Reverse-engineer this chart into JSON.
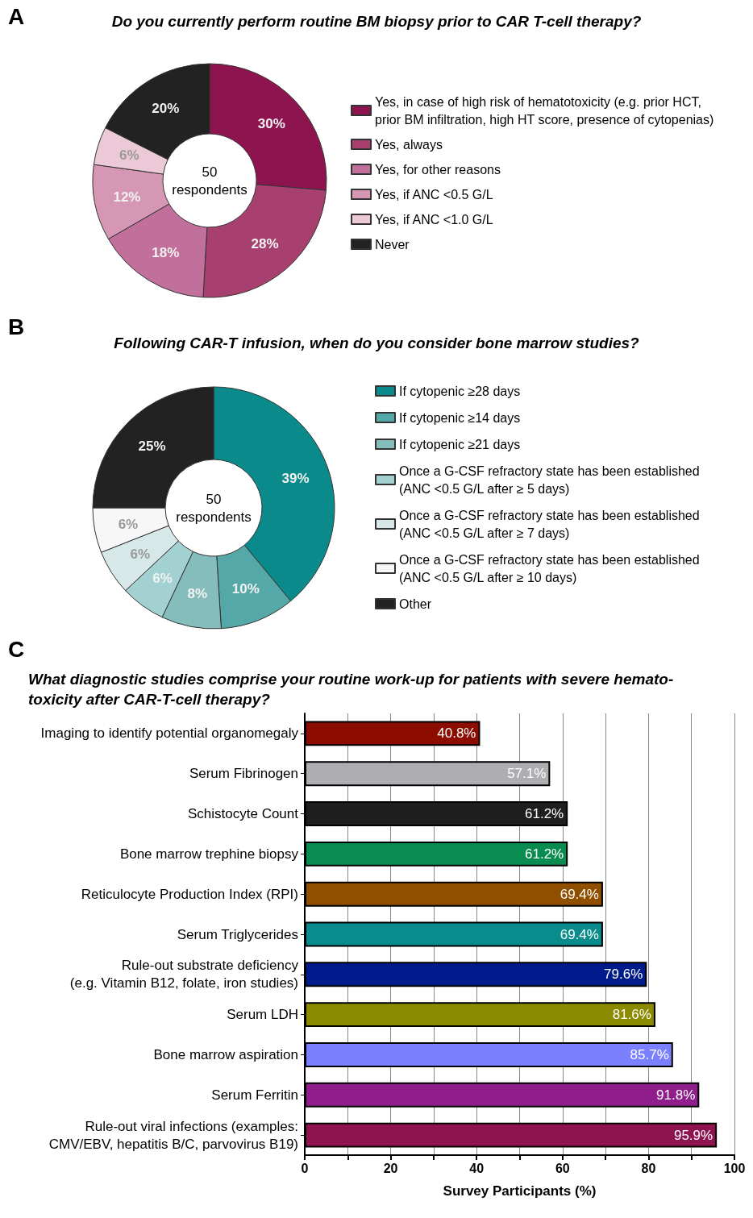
{
  "chart_data": [
    {
      "type": "donut",
      "title": "Do you currently perform routine BM biopsy prior to CAR T-cell therapy?",
      "annotations": [
        "A",
        "50\nrespondents"
      ],
      "categories": [
        "Yes, in case of high risk of hematotoxicity (e.g. prior HCT,\nprior BM infiltration, high HT score, presence of cytopenias)",
        "Yes, always",
        "Yes, for other reasons",
        "Yes, if ANC <0.5 G/L",
        "Yes, if ANC <1.0 G/L",
        "Never"
      ],
      "values": [
        30,
        28,
        18,
        12,
        6,
        20
      ],
      "value_labels": [
        "30%",
        "28%",
        "18%",
        "12%",
        "6%",
        "20%"
      ],
      "colors": [
        "#8e1450",
        "#a8406f",
        "#c0709a",
        "#d597b3",
        "#ecc9d6",
        "#222222"
      ],
      "legend": "right"
    },
    {
      "type": "donut",
      "title": "Following CAR-T infusion, when do you consider bone marrow studies?",
      "annotations": [
        "B",
        "50\nrespondents"
      ],
      "categories": [
        "If cytopenic ≥28 days",
        "If cytopenic ≥14 days",
        "If cytopenic ≥21 days",
        "Once a G-CSF refractory state has been established\n(ANC <0.5 G/L after ≥ 5 days)",
        "Once a G-CSF refractory state has been established\n(ANC <0.5 G/L after ≥ 7 days)",
        "Once a G-CSF refractory state has been established\n(ANC <0.5 G/L after ≥ 10 days)",
        "Other"
      ],
      "values": [
        39,
        10,
        8,
        6,
        6,
        6,
        25
      ],
      "value_labels": [
        "39%",
        "10%",
        "8%",
        "6%",
        "6%",
        "6%",
        "25%"
      ],
      "colors": [
        "#0a8a8a",
        "#55a8a8",
        "#85bcbc",
        "#a3d1d1",
        "#d6e8e8",
        "#f7f7f7",
        "#222222"
      ],
      "legend": "right"
    },
    {
      "type": "bar",
      "orientation": "horizontal",
      "title": "What diagnostic studies comprise your routine work-up for patients with severe hemato-\ntoxicity after CAR-T-cell therapy?",
      "annotations": [
        "C"
      ],
      "xlabel": "Survey Participants (%)",
      "categories": [
        "Imaging to identify potential organomegaly",
        "Serum Fibrinogen",
        "Schistocyte Count",
        "Bone marrow trephine biopsy",
        "Reticulocyte Production Index (RPI)",
        "Serum Triglycerides",
        "Rule-out substrate deficiency\n(e.g. Vitamin B12, folate, iron studies)",
        "Serum LDH",
        "Bone marrow aspiration",
        "Serum Ferritin",
        "Rule-out viral infections (examples:\nCMV/EBV, hepatitis B/C, parvovirus B19)"
      ],
      "values": [
        40.8,
        57.1,
        61.2,
        61.2,
        69.4,
        69.4,
        79.6,
        81.6,
        85.7,
        91.8,
        95.9
      ],
      "value_labels": [
        "40.8%",
        "57.1%",
        "61.2%",
        "61.2%",
        "69.4%",
        "69.4%",
        "79.6%",
        "81.6%",
        "85.7%",
        "91.8%",
        "95.9%"
      ],
      "colors": [
        "#8c0c00",
        "#adadb2",
        "#1e1e1e",
        "#0a8c50",
        "#8f4e00",
        "#0a8c8c",
        "#001b8c",
        "#8c8a00",
        "#7b80ff",
        "#8f1e8c",
        "#8e1450"
      ],
      "xlim": [
        0,
        100
      ],
      "xticks": [
        0,
        {
          "value": 10,
          "label": null
        },
        20,
        {
          "value": 30,
          "label": null
        },
        40,
        {
          "value": 50,
          "label": null
        },
        60,
        {
          "value": 70,
          "label": null
        },
        80,
        {
          "value": 90,
          "label": null
        },
        100
      ],
      "grid": "x",
      "legend": false
    }
  ]
}
